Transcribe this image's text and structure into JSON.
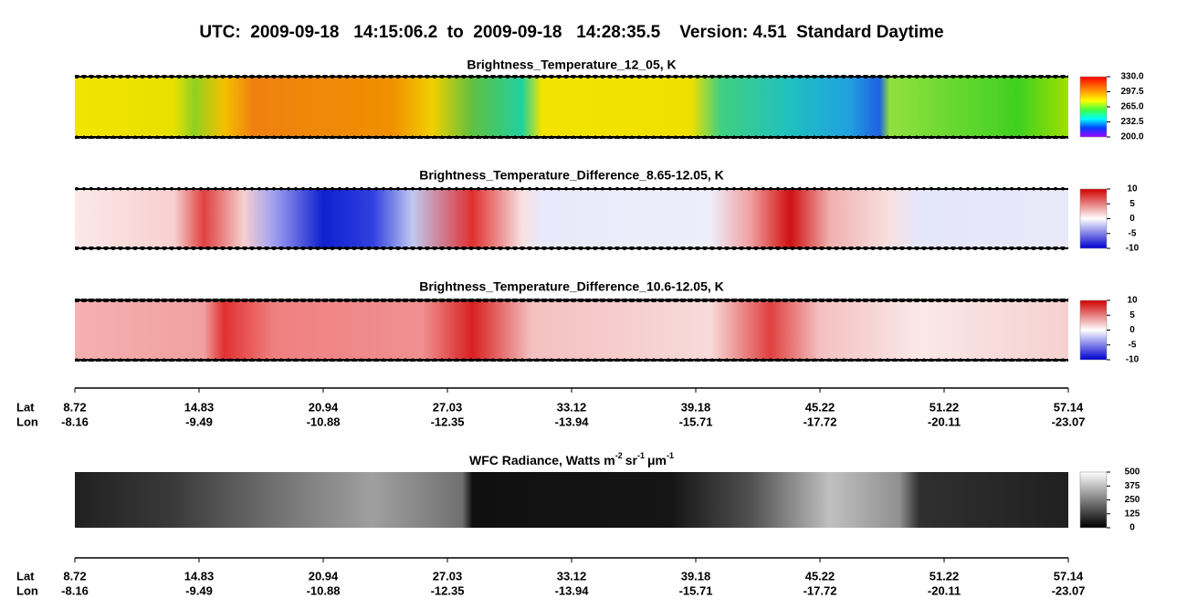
{
  "header": {
    "title": "UTC:  2009-09-18   14:15:06.2  to  2009-09-18   14:28:35.5    Version: 4.51  Standard Daytime"
  },
  "panels": [
    {
      "title": "Brightness_Temperature_12_05, K",
      "colorbar_labels": [
        "330.0",
        "297.5",
        "265.0",
        "232.5",
        "200.0"
      ]
    },
    {
      "title": "Brightness_Temperature_Difference_8.65-12.05, K",
      "colorbar_labels": [
        "10",
        "5",
        "0",
        "-5",
        "-10"
      ]
    },
    {
      "title": "Brightness_Temperature_Difference_10.6-12.05, K",
      "colorbar_labels": [
        "10",
        "5",
        "0",
        "-5",
        "-10"
      ]
    },
    {
      "title_parts": [
        "WFC Radiance, Watts m",
        "-2",
        "sr",
        "-1",
        "μm",
        "-1"
      ],
      "colorbar_labels": [
        "500",
        "375",
        "250",
        "125",
        "0"
      ]
    }
  ],
  "axes": [
    {
      "lat_label": "Lat",
      "lon_label": "Lon",
      "lat": [
        "8.72",
        "14.83",
        "20.94",
        "27.03",
        "33.12",
        "39.18",
        "45.22",
        "51.22",
        "57.14"
      ],
      "lon": [
        "-8.16",
        "-9.49",
        "-10.88",
        "-12.35",
        "-13.94",
        "-15.71",
        "-17.72",
        "-20.11",
        "-23.07"
      ]
    },
    {
      "lat_label": "Lat",
      "lon_label": "Lon",
      "lat": [
        "8.72",
        "14.83",
        "20.94",
        "27.03",
        "33.12",
        "39.18",
        "45.22",
        "51.22",
        "57.14"
      ],
      "lon": [
        "-8.16",
        "-9.49",
        "-10.88",
        "-12.35",
        "-13.94",
        "-15.71",
        "-17.72",
        "-20.11",
        "-23.07"
      ]
    }
  ]
}
